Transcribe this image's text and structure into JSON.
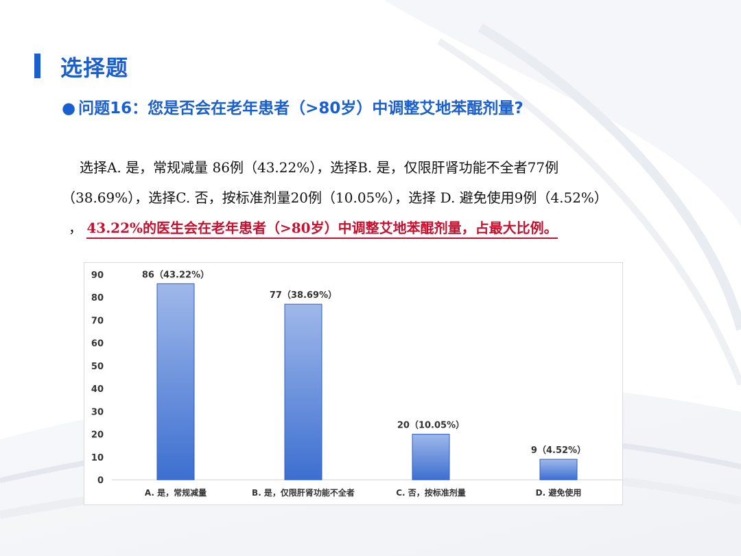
{
  "section": {
    "title": "选择题"
  },
  "question": {
    "bullet": "●",
    "text": "问题16：您是否会在老年患者（>80岁）中调整艾地苯醌剂量?"
  },
  "summary": {
    "line1": "选择A. 是，常规减量 86例（43.22%），选择B. 是，仅限肝肾功能不全者77例",
    "line2": "（38.69%），选择C. 否，按标准剂量20例（10.05%），选择 D. 避免使用9例（4.52%）",
    "line3_prefix": "，",
    "highlight": "43.22%的医生会在老年患者（>80岁）中调整艾地苯醌剂量，占最大比例。"
  },
  "colors": {
    "accent": "#1a5fcf",
    "highlight": "#c8102e",
    "bar_top": "#9fb8ea",
    "bar_bottom": "#3d6fd0"
  },
  "chart_data": {
    "type": "bar",
    "categories": [
      "A. 是，常规减量",
      "B. 是，仅限肝肾功能不全者",
      "C. 否，按标准剂量",
      "D. 避免使用"
    ],
    "values": [
      86,
      77,
      20,
      9
    ],
    "data_labels": [
      "86（43.22%）",
      "77（38.69%）",
      "20（10.05%）",
      "9（4.52%）"
    ],
    "yticks": [
      "0",
      "10",
      "20",
      "30",
      "40",
      "50",
      "60",
      "70",
      "80",
      "90"
    ],
    "ylim": [
      0,
      90
    ],
    "title": "",
    "xlabel": "",
    "ylabel": "",
    "grid": false,
    "legend": "none"
  }
}
